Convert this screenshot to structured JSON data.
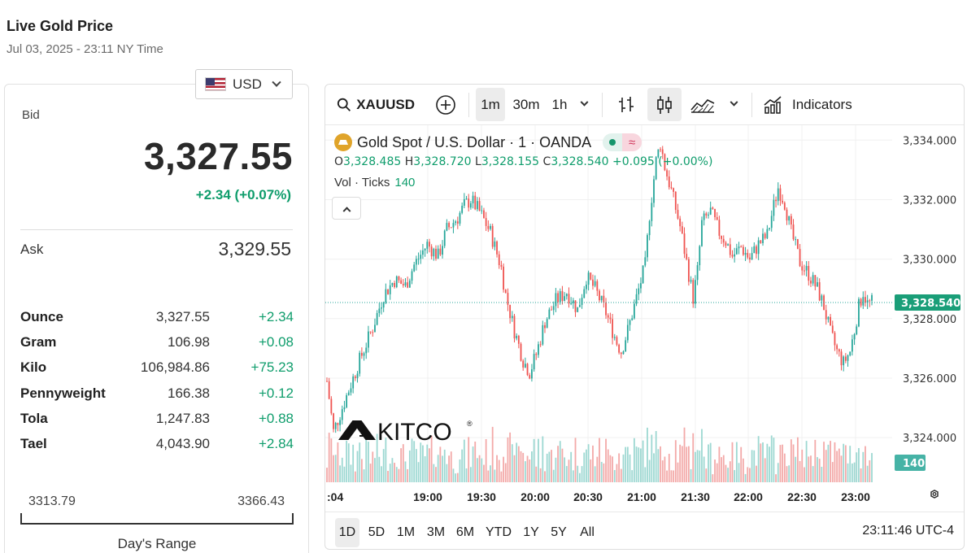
{
  "page": {
    "title": "Live Gold Price",
    "timestamp": "Jul 03, 2025 - 23:11 NY Time"
  },
  "currency": {
    "selected": "USD"
  },
  "quote": {
    "bid_label": "Bid",
    "bid": "3,327.55",
    "change": "+2.34 (+0.07%)",
    "ask_label": "Ask",
    "ask": "3,329.55"
  },
  "units": [
    {
      "name": "Ounce",
      "price": "3,327.55",
      "change": "+2.34"
    },
    {
      "name": "Gram",
      "price": "106.98",
      "change": "+0.08"
    },
    {
      "name": "Kilo",
      "price": "106,984.86",
      "change": "+75.23"
    },
    {
      "name": "Pennyweight",
      "price": "166.38",
      "change": "+0.12"
    },
    {
      "name": "Tola",
      "price": "1,247.83",
      "change": "+0.88"
    },
    {
      "name": "Tael",
      "price": "4,043.90",
      "change": "+2.84"
    }
  ],
  "days_range": {
    "low": "3313.79",
    "high": "3366.43",
    "caption": "Day's Range"
  },
  "chart_toolbar": {
    "symbol": "XAUUSD",
    "intervals": [
      "1m",
      "30m",
      "1h"
    ],
    "active_interval": "1m",
    "indicators_label": "Indicators"
  },
  "chart_legend": {
    "title": "Gold Spot  /  U.S. Dollar · 1 · OANDA",
    "o_label": "O",
    "o": "3,328.485",
    "h_label": "H",
    "h": "3,328.720",
    "l_label": "L",
    "l": "3,328.155",
    "c_label": "C",
    "c": "3,328.540",
    "change": "+0.095 (+0.00%)",
    "vol_label": "Vol · Ticks",
    "vol_value": "140",
    "bold_flag_icon": "approx-icon"
  },
  "watermark": "KITCO",
  "chart_data": {
    "type": "candlestick",
    "x_ticks": [
      ":04",
      "19:00",
      "19:30",
      "20:00",
      "20:30",
      "21:00",
      "21:30",
      "22:00",
      "22:30",
      "23:00"
    ],
    "y_ticks": [
      "3,334.000",
      "3,332.000",
      "3,330.000",
      "3,328.000",
      "3,326.000",
      "3,324.000"
    ],
    "ylim": [
      3322.5,
      3334.5
    ],
    "last_price_label": "3,328.540",
    "last_price": 3328.54,
    "last_volume_label": "140",
    "up_color": "#26a69a",
    "down_color": "#ef5350",
    "path": [
      [
        0,
        3325.9
      ],
      [
        3,
        3324.2
      ],
      [
        6,
        3324.8
      ],
      [
        10,
        3325.6
      ],
      [
        15,
        3326.6
      ],
      [
        21,
        3327.7
      ],
      [
        26,
        3328.8
      ],
      [
        31,
        3329.3
      ],
      [
        36,
        3329.1
      ],
      [
        40,
        3329.8
      ],
      [
        46,
        3330.5
      ],
      [
        51,
        3330.1
      ],
      [
        55,
        3331.0
      ],
      [
        60,
        3331.4
      ],
      [
        63,
        3331.8
      ],
      [
        66,
        3332.0
      ],
      [
        70,
        3331.6
      ],
      [
        75,
        3330.9
      ],
      [
        80,
        3329.7
      ],
      [
        82,
        3328.8
      ],
      [
        86,
        3327.6
      ],
      [
        90,
        3326.6
      ],
      [
        93,
        3326.2
      ],
      [
        96,
        3326.8
      ],
      [
        100,
        3327.9
      ],
      [
        105,
        3328.6
      ],
      [
        110,
        3328.9
      ],
      [
        115,
        3328.3
      ],
      [
        119,
        3329.4
      ],
      [
        123,
        3329.0
      ],
      [
        128,
        3328.2
      ],
      [
        133,
        3327.2
      ],
      [
        135,
        3326.9
      ],
      [
        138,
        3327.6
      ],
      [
        142,
        3328.7
      ],
      [
        146,
        3329.8
      ],
      [
        148,
        3331.5
      ],
      [
        151,
        3333.3
      ],
      [
        153,
        3333.9
      ],
      [
        155,
        3333.1
      ],
      [
        158,
        3332.3
      ],
      [
        162,
        3331.1
      ],
      [
        165,
        3329.9
      ],
      [
        168,
        3328.7
      ],
      [
        170,
        3329.6
      ],
      [
        172,
        3331.2
      ],
      [
        176,
        3331.6
      ],
      [
        180,
        3330.9
      ],
      [
        183,
        3330.6
      ],
      [
        186,
        3330.1
      ],
      [
        190,
        3330.4
      ],
      [
        194,
        3330.0
      ],
      [
        198,
        3330.5
      ],
      [
        202,
        3330.8
      ],
      [
        205,
        3331.8
      ],
      [
        207,
        3332.4
      ],
      [
        210,
        3331.9
      ],
      [
        213,
        3330.9
      ],
      [
        217,
        3329.9
      ],
      [
        221,
        3329.5
      ],
      [
        225,
        3329.0
      ],
      [
        228,
        3328.4
      ],
      [
        231,
        3327.5
      ],
      [
        234,
        3326.9
      ],
      [
        237,
        3326.5
      ],
      [
        240,
        3326.9
      ],
      [
        242,
        3327.6
      ],
      [
        244,
        3328.4
      ],
      [
        246,
        3328.9
      ],
      [
        248,
        3328.5
      ],
      [
        250,
        3328.54
      ]
    ]
  },
  "bottom_bar": {
    "ranges": [
      "1D",
      "5D",
      "1M",
      "3M",
      "6M",
      "YTD",
      "1Y",
      "5Y",
      "All"
    ],
    "active_range": "1D",
    "clock": "23:11:46 UTC-4"
  }
}
